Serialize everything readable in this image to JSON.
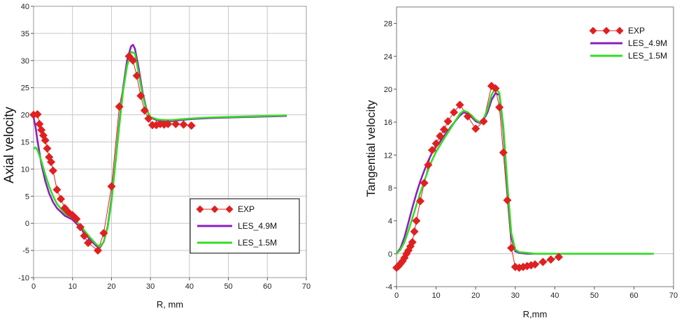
{
  "colors": {
    "exp": "#e02020",
    "les49": "#8a1fc0",
    "les15": "#33dd22",
    "grid": "#c8c8c8",
    "frame": "#000000"
  },
  "chart_data": [
    {
      "type": "line",
      "title": "",
      "xlabel": "R, mm",
      "ylabel": "Axial velocity",
      "xlim": [
        0,
        70
      ],
      "ylim": [
        -10,
        40
      ],
      "xticks": [
        0,
        10,
        20,
        30,
        40,
        50,
        60,
        70
      ],
      "yticks": [
        -10,
        -5,
        0,
        5,
        10,
        15,
        20,
        25,
        30,
        35,
        40
      ],
      "grid": true,
      "legend_position": "bottom-right",
      "series": [
        {
          "name": "EXP",
          "style": "markers-diamond-with-line",
          "x": [
            0,
            1,
            1.5,
            2,
            2.5,
            3,
            3.5,
            4,
            4.5,
            5,
            6,
            7,
            8,
            9,
            10,
            11,
            12,
            13,
            14,
            16.5,
            18,
            20,
            22,
            24.5,
            25.5,
            26.5,
            27.5,
            28.5,
            29.5,
            30.5,
            31.5,
            32.5,
            33.5,
            34.5,
            36.5,
            38.5,
            40.5
          ],
          "y": [
            20.0,
            20.1,
            18.3,
            17.2,
            16.2,
            15.3,
            13.8,
            12.2,
            11.3,
            9.7,
            6.2,
            4.5,
            2.8,
            2.0,
            1.5,
            0.8,
            -0.7,
            -2.3,
            -3.6,
            -5.0,
            -1.8,
            6.8,
            21.5,
            30.8,
            30.0,
            27.2,
            23.5,
            20.8,
            19.3,
            18.1,
            18.1,
            18.3,
            18.2,
            18.3,
            18.3,
            18.2,
            18.0
          ]
        },
        {
          "name": "LES_4.9M",
          "style": "line",
          "x": [
            0,
            0.5,
            1,
            2,
            3,
            4,
            5,
            6,
            8,
            10,
            12,
            14,
            16,
            17,
            18,
            19,
            20,
            21,
            22,
            23,
            24,
            25,
            25.5,
            26,
            27,
            28,
            29,
            30,
            32,
            35,
            40,
            45,
            50,
            55,
            60,
            65
          ],
          "y": [
            19.5,
            17.8,
            15.2,
            11.0,
            7.8,
            5.5,
            3.9,
            2.8,
            1.4,
            0.7,
            -0.8,
            -2.6,
            -4.1,
            -4.5,
            -3.4,
            -0.6,
            4.5,
            11.3,
            18.5,
            25.0,
            30.0,
            32.6,
            32.9,
            32.2,
            28.5,
            24.0,
            21.0,
            19.5,
            18.9,
            18.8,
            19.2,
            19.4,
            19.5,
            19.6,
            19.7,
            19.8
          ]
        },
        {
          "name": "LES_1.5M",
          "style": "line",
          "x": [
            0,
            0.5,
            1,
            2,
            3,
            4,
            5,
            6,
            8,
            10,
            12,
            14,
            16,
            17,
            18,
            19,
            20,
            21,
            22,
            23,
            24,
            25,
            26,
            27,
            28,
            29,
            30,
            32,
            35,
            40,
            45,
            50,
            55,
            60,
            65
          ],
          "y": [
            13.7,
            14.0,
            13.5,
            11.5,
            9.0,
            6.8,
            5.0,
            3.6,
            1.8,
            1.0,
            -0.4,
            -2.2,
            -3.8,
            -4.3,
            -3.4,
            -0.8,
            4.0,
            11.0,
            18.0,
            24.5,
            29.0,
            31.6,
            31.3,
            27.5,
            23.5,
            20.8,
            19.6,
            19.1,
            19.0,
            19.3,
            19.5,
            19.6,
            19.7,
            19.8,
            19.9
          ]
        }
      ]
    },
    {
      "type": "line",
      "title": "",
      "xlabel": "R,mm",
      "ylabel": "Tangential velocity",
      "xlim": [
        0,
        70
      ],
      "ylim": [
        -4,
        30
      ],
      "xticks": [
        0,
        10,
        20,
        30,
        40,
        50,
        60,
        70
      ],
      "yticks": [
        -4,
        0,
        4,
        8,
        12,
        16,
        20,
        24,
        28
      ],
      "grid": false,
      "legend_position": "top-right",
      "series": [
        {
          "name": "EXP",
          "style": "markers-diamond-with-line",
          "x": [
            0,
            0.5,
            1,
            1.5,
            2,
            2.5,
            3,
            3.5,
            4,
            4.5,
            5,
            6,
            7,
            8,
            9,
            10,
            11,
            12,
            13,
            14.5,
            16,
            18,
            20,
            22,
            24,
            25,
            26,
            27,
            28,
            29,
            30,
            31,
            32,
            33,
            34,
            35,
            37,
            39,
            41
          ],
          "y": [
            -1.7,
            -1.5,
            -1.2,
            -0.9,
            -0.5,
            0.0,
            0.4,
            0.9,
            1.4,
            2.7,
            4.0,
            6.4,
            8.6,
            10.8,
            12.6,
            13.4,
            14.3,
            15.1,
            16.1,
            17.2,
            18.1,
            16.7,
            15.2,
            16.1,
            20.4,
            20.1,
            17.8,
            12.3,
            6.5,
            0.7,
            -1.6,
            -1.7,
            -1.6,
            -1.5,
            -1.4,
            -1.3,
            -1.0,
            -0.7,
            -0.4
          ]
        },
        {
          "name": "LES_4.9M",
          "style": "line",
          "x": [
            0,
            1,
            2,
            3,
            4,
            5,
            6,
            7,
            8,
            9,
            10,
            12,
            14,
            16,
            17,
            18,
            19,
            20,
            21,
            22,
            23,
            24,
            25,
            26,
            27,
            28,
            29,
            30,
            31,
            33,
            35,
            40,
            50,
            60,
            65
          ],
          "y": [
            0.0,
            0.7,
            2.0,
            3.8,
            5.6,
            7.3,
            8.8,
            10.1,
            11.3,
            12.3,
            13.0,
            14.3,
            15.6,
            16.8,
            17.2,
            17.0,
            16.6,
            16.1,
            15.9,
            16.3,
            17.2,
            18.7,
            19.5,
            19.3,
            15.0,
            7.8,
            2.0,
            0.3,
            0.1,
            0.0,
            0.0,
            0.0,
            0.0,
            0.0,
            0.0
          ]
        },
        {
          "name": "LES_1.5M",
          "style": "line",
          "x": [
            0,
            1,
            2,
            3,
            4,
            5,
            6,
            7,
            8,
            9,
            10,
            12,
            14,
            16,
            17,
            18,
            19,
            20,
            21,
            22,
            23,
            24,
            25,
            26,
            27,
            28,
            29,
            30,
            31,
            33,
            35,
            40,
            50,
            60,
            65
          ],
          "y": [
            0.0,
            0.5,
            1.4,
            2.8,
            4.3,
            5.9,
            7.4,
            8.8,
            10.2,
            11.4,
            12.4,
            14.0,
            15.5,
            17.0,
            17.4,
            17.2,
            16.8,
            16.3,
            16.0,
            16.4,
            17.6,
            19.3,
            20.2,
            19.5,
            15.5,
            8.5,
            2.5,
            0.5,
            0.2,
            0.1,
            0.0,
            0.0,
            0.0,
            0.0,
            0.0
          ]
        }
      ]
    }
  ]
}
